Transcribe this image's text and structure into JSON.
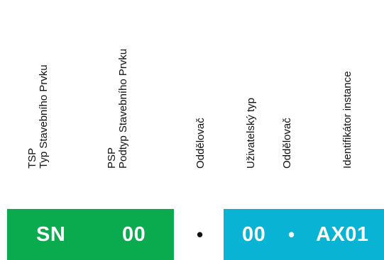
{
  "labels": {
    "tsp": {
      "abbr": "TSP",
      "full": "Typ Stavebního Prvku"
    },
    "psp": {
      "abbr": "PSP",
      "full": "Podtyp Stavebního Prvku"
    },
    "separator1": "Oddělovač",
    "user_type": "Uživatelský typ",
    "separator2": "Oddělovač",
    "instance_id": "Identifikátor instance"
  },
  "code": {
    "tsp_value": "SN",
    "psp_value": "00",
    "separator1": "•",
    "user_type_value": "00",
    "separator2": "•",
    "instance_value": "AX01"
  },
  "colors": {
    "tsp_psp_block": "#0aab4e",
    "user_instance_block": "#08b3d4",
    "separator_dot_on_white": "#111111",
    "separator_dot_on_blue": "#ffffff"
  }
}
